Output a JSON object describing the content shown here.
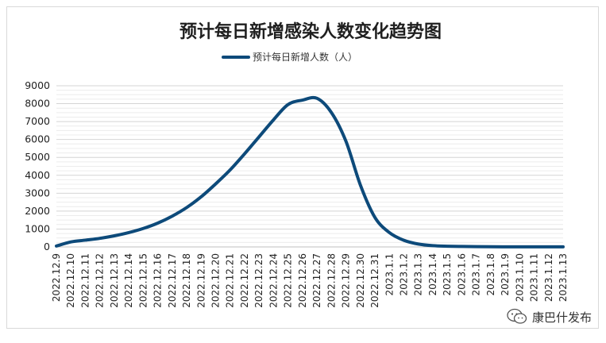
{
  "chart_data": {
    "type": "line",
    "title": "预计每日新增感染人数变化趋势图",
    "legend": {
      "position": "top"
    },
    "xlabel": "",
    "ylabel": "",
    "ylim": [
      0,
      9000
    ],
    "yticks": [
      0,
      1000,
      2000,
      3000,
      4000,
      5000,
      6000,
      7000,
      8000,
      9000
    ],
    "grid": true,
    "categories": [
      "2022.12.9",
      "2022.12.10",
      "2022.12.11",
      "2022.12.12",
      "2022.12.13",
      "2022.12.14",
      "2022.12.15",
      "2022.12.16",
      "2022.12.17",
      "2022.12.18",
      "2022.12.19",
      "2022.12.20",
      "2022.12.21",
      "2022.12.22",
      "2022.12.23",
      "2022.12.24",
      "2022.12.25",
      "2022.12.26",
      "2022.12.27",
      "2022.12.28",
      "2022.12.29",
      "2022.12.30",
      "2022.12.31",
      "2023.1.1",
      "2023.1.2",
      "2023.1.3",
      "2023.1.4",
      "2023.1.5",
      "2023.1.6",
      "2023.1.7",
      "2023.1.8",
      "2023.1.9",
      "2023.1.10",
      "2023.1.11",
      "2023.1.12",
      "2023.1.13"
    ],
    "series": [
      {
        "name": "预计每日新增人数（人）",
        "color": "#0d4a7a",
        "values": [
          50,
          280,
          380,
          480,
          620,
          800,
          1030,
          1330,
          1720,
          2200,
          2800,
          3520,
          4300,
          5200,
          6150,
          7100,
          7950,
          8200,
          8300,
          7500,
          5900,
          3450,
          1650,
          800,
          370,
          160,
          70,
          40,
          25,
          15,
          10,
          8,
          6,
          5,
          4,
          3
        ]
      }
    ]
  },
  "watermark": {
    "icon": "wechat-icon",
    "text": "康巴什发布"
  }
}
